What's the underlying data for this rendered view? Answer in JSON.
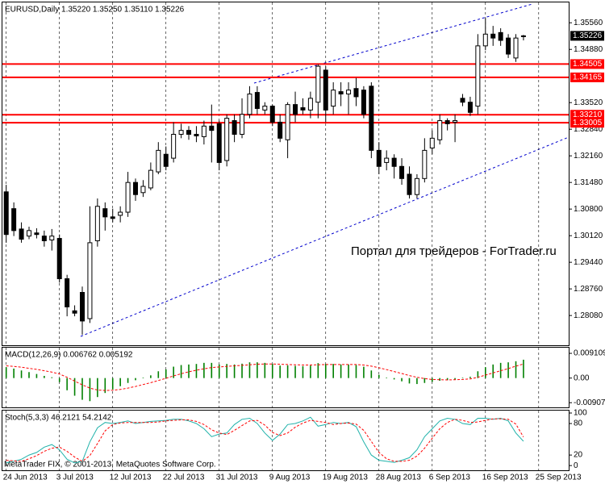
{
  "chart_data": [
    {
      "type": "candlestick",
      "title": "EURUSD,Daily  1.35220 1.35250 1.35110 1.35226",
      "up_color": "#ffffff",
      "down_color": "#000000",
      "level_color": "#ff0000",
      "ylim": [
        1.2732,
        1.3608
      ],
      "yticks": [
        {
          "value": 1.3556,
          "label": "1.35560"
        },
        {
          "value": 1.3488,
          "label": "1.34880"
        },
        {
          "value": 1.3352,
          "label": "1.33520"
        },
        {
          "value": 1.3284,
          "label": "1.32840"
        },
        {
          "value": 1.3216,
          "label": "1.32160"
        },
        {
          "value": 1.3148,
          "label": "1.31480"
        },
        {
          "value": 1.308,
          "label": "1.30800"
        },
        {
          "value": 1.3012,
          "label": "1.30120"
        },
        {
          "value": 1.2944,
          "label": "1.29440"
        },
        {
          "value": 1.2876,
          "label": "1.28760"
        },
        {
          "value": 1.2808,
          "label": "1.28080"
        }
      ],
      "levels": [
        1.34505,
        1.34165,
        {
          "value": 1.3321,
          "label": "1.33210"
        },
        1.33005
      ],
      "xticks": [
        {
          "value": 0,
          "label": "24 Jun 2013"
        },
        {
          "value": 7,
          "label": "3 Jul 2013"
        },
        {
          "value": 14,
          "label": "12 Jul 2013"
        },
        {
          "value": 21,
          "label": "22 Jul 2013"
        },
        {
          "value": 28,
          "label": "31 Jul 2013"
        },
        {
          "value": 35,
          "label": "9 Aug 2013"
        },
        {
          "value": 42,
          "label": "19 Aug 2013"
        },
        {
          "value": 49,
          "label": "28 Aug 2013"
        },
        {
          "value": 56,
          "label": "6 Sep 2013"
        },
        {
          "value": 63,
          "label": "16 Sep 2013"
        },
        {
          "value": 70,
          "label": "25 Sep 2013"
        }
      ],
      "open": [
        1.3124,
        1.3081,
        1.3029,
        1.3011,
        1.3019,
        1.3011,
        1.3001,
        1.3005,
        1.2902,
        1.282,
        1.2867,
        1.28,
        1.2999,
        1.3081,
        1.306,
        1.3064,
        1.3072,
        1.3148,
        1.3122,
        1.3134,
        1.3175,
        1.322,
        1.321,
        1.3271,
        1.3281,
        1.3271,
        1.3265,
        1.3292,
        1.3298,
        1.3204,
        1.3306,
        1.3271,
        1.3322,
        1.3378,
        1.3333,
        1.3343,
        1.3302,
        1.3257,
        1.3347,
        1.3339,
        1.3333,
        1.3353,
        1.3435,
        1.3343,
        1.338,
        1.3374,
        1.3388,
        1.3384,
        1.3394,
        1.323,
        1.3199,
        1.321,
        1.3189,
        1.3169,
        1.3117,
        1.3158,
        1.3236,
        1.3257,
        1.3306,
        1.3302,
        1.3363,
        1.3353,
        1.3343,
        1.3497,
        1.3527,
        1.3531,
        1.3517,
        1.3466,
        1.3522
      ],
      "high": [
        1.3142,
        1.3097,
        1.3046,
        1.3035,
        1.3031,
        1.3025,
        1.3029,
        1.3015,
        1.2912,
        1.2834,
        1.2882,
        1.3087,
        1.3107,
        1.3097,
        1.3081,
        1.3087,
        1.3175,
        1.3158,
        1.3154,
        1.3199,
        1.3251,
        1.324,
        1.3302,
        1.3298,
        1.3292,
        1.3292,
        1.3306,
        1.3347,
        1.3306,
        1.3322,
        1.3322,
        1.3363,
        1.3394,
        1.3394,
        1.3353,
        1.3347,
        1.3322,
        1.3353,
        1.338,
        1.3363,
        1.338,
        1.345,
        1.3445,
        1.3404,
        1.3404,
        1.3404,
        1.3415,
        1.3394,
        1.3404,
        1.3251,
        1.323,
        1.322,
        1.321,
        1.3189,
        1.3169,
        1.3261,
        1.3281,
        1.3322,
        1.3312,
        1.3322,
        1.3374,
        1.3367,
        1.3527,
        1.3568,
        1.3548,
        1.3542,
        1.3527,
        1.3527,
        1.3525
      ],
      "low": [
        1.2994,
        1.3011,
        1.2994,
        1.3003,
        1.3005,
        1.2984,
        1.2974,
        1.2892,
        1.2806,
        1.2806,
        1.2759,
        1.2789,
        1.2984,
        1.3025,
        1.3046,
        1.3046,
        1.306,
        1.3101,
        1.3111,
        1.3128,
        1.3169,
        1.3179,
        1.3199,
        1.3261,
        1.3257,
        1.3251,
        1.3245,
        1.3199,
        1.3179,
        1.3189,
        1.3251,
        1.3261,
        1.3312,
        1.3322,
        1.3322,
        1.3292,
        1.3251,
        1.321,
        1.3302,
        1.3322,
        1.3312,
        1.3312,
        1.3302,
        1.3322,
        1.3343,
        1.3322,
        1.3343,
        1.3312,
        1.321,
        1.3169,
        1.3179,
        1.3158,
        1.3142,
        1.3107,
        1.3107,
        1.3148,
        1.322,
        1.3245,
        1.3281,
        1.3251,
        1.3343,
        1.3318,
        1.3322,
        1.3486,
        1.3497,
        1.3497,
        1.3466,
        1.3456,
        1.3511
      ],
      "close": [
        1.3015,
        1.3025,
        1.3003,
        1.3025,
        1.3015,
        1.2999,
        1.3011,
        1.2902,
        1.283,
        1.2814,
        1.2794,
        1.2994,
        1.3087,
        1.306,
        1.3056,
        1.3072,
        1.3148,
        1.3117,
        1.3138,
        1.3179,
        1.323,
        1.3189,
        1.3271,
        1.3281,
        1.3271,
        1.3267,
        1.3292,
        1.3281,
        1.3199,
        1.3312,
        1.3271,
        1.3322,
        1.3374,
        1.3337,
        1.3343,
        1.3302,
        1.3261,
        1.3347,
        1.3322,
        1.3333,
        1.3363,
        1.3445,
        1.3333,
        1.3384,
        1.3374,
        1.3384,
        1.3367,
        1.3322,
        1.323,
        1.3189,
        1.321,
        1.3189,
        1.3158,
        1.3117,
        1.3158,
        1.323,
        1.3261,
        1.3306,
        1.3298,
        1.3306,
        1.3353,
        1.3327,
        1.3497,
        1.3527,
        1.3517,
        1.3511,
        1.3476,
        1.3517,
        1.35226
      ]
    },
    {
      "type": "macd",
      "title": "MACD(12,26,9) 0.006762 0.005192",
      "ylim": [
        -0.0108,
        0.0112
      ],
      "yticks": [
        0.009109,
        {
          "value": 0,
          "label": "0.00"
        },
        -0.009076
      ],
      "histogram_color": "#008000",
      "signal_color": "#ff0000",
      "histogram": [
        0.004,
        0.0035,
        0.0028,
        0.0022,
        0.0015,
        0.0008,
        0.0003,
        -0.0015,
        -0.0045,
        -0.0065,
        -0.008,
        -0.0085,
        -0.007,
        -0.0055,
        -0.0042,
        -0.003,
        -0.0018,
        -0.0008,
        0.0002,
        0.001,
        0.0025,
        0.0032,
        0.0042,
        0.0048,
        0.005,
        0.0052,
        0.0056,
        0.0056,
        0.005,
        0.0052,
        0.005,
        0.0053,
        0.0058,
        0.0058,
        0.0056,
        0.0052,
        0.0046,
        0.0047,
        0.0045,
        0.0044,
        0.0046,
        0.0055,
        0.0052,
        0.0052,
        0.005,
        0.005,
        0.0048,
        0.0042,
        0.0028,
        0.0012,
        0.0002,
        -0.0005,
        -0.0012,
        -0.002,
        -0.0022,
        -0.0018,
        -0.0014,
        -0.001,
        -0.0008,
        -0.0005,
        0.0002,
        0.0005,
        0.0025,
        0.004,
        0.005,
        0.0056,
        0.0058,
        0.0062,
        0.006762
      ],
      "signal": [
        0.0045,
        0.0043,
        0.004,
        0.0036,
        0.0032,
        0.0027,
        0.0022,
        0.0015,
        0.0003,
        -0.0011,
        -0.0025,
        -0.0037,
        -0.0044,
        -0.0046,
        -0.0045,
        -0.0042,
        -0.0037,
        -0.0031,
        -0.0024,
        -0.0017,
        -0.0009,
        -0.0001,
        0.0008,
        0.0016,
        0.0023,
        0.0029,
        0.0034,
        0.0039,
        0.0041,
        0.0043,
        0.0045,
        0.0047,
        0.0049,
        0.0051,
        0.0052,
        0.0052,
        0.0051,
        0.005,
        0.0049,
        0.0048,
        0.0048,
        0.0049,
        0.005,
        0.005,
        0.005,
        0.005,
        0.005,
        0.0048,
        0.0044,
        0.0038,
        0.0031,
        0.0024,
        0.0017,
        0.0009,
        0.0003,
        -0.0002,
        -0.0005,
        -0.0006,
        -0.0007,
        -0.0006,
        -0.0005,
        -0.0003,
        0.0003,
        0.0011,
        0.0019,
        0.0027,
        0.0035,
        0.0044,
        0.005192
      ]
    },
    {
      "type": "stochastic",
      "title": "Stoch(5,3,3) 46.2121 54.2142",
      "ylim": [
        -9,
        104.6
      ],
      "yticks": [
        100,
        80,
        20,
        0
      ],
      "main_color": "#20b2aa",
      "signal_color": "#ff0000",
      "main": [
        5,
        8,
        12,
        20,
        25,
        35,
        40,
        30,
        12,
        5,
        8,
        45,
        72,
        82,
        80,
        82,
        85,
        80,
        82,
        84,
        85,
        86,
        88,
        88,
        85,
        80,
        70,
        55,
        60,
        62,
        78,
        88,
        90,
        80,
        62,
        48,
        60,
        78,
        80,
        85,
        92,
        75,
        78,
        82,
        80,
        82,
        74,
        45,
        20,
        10,
        8,
        6,
        10,
        15,
        30,
        55,
        70,
        85,
        90,
        88,
        80,
        78,
        90,
        90,
        88,
        90,
        85,
        62,
        46.2121
      ],
      "signal": [
        10,
        9,
        8,
        13,
        19,
        27,
        33,
        35,
        27,
        16,
        8,
        19,
        42,
        66,
        78,
        81,
        82,
        82,
        82,
        82,
        83,
        85,
        86,
        87,
        87,
        84,
        78,
        68,
        62,
        59,
        67,
        76,
        85,
        86,
        77,
        63,
        57,
        62,
        73,
        81,
        86,
        84,
        82,
        78,
        80,
        81,
        79,
        67,
        46,
        25,
        13,
        8,
        8,
        10,
        18,
        33,
        52,
        70,
        82,
        88,
        86,
        82,
        83,
        86,
        89,
        89,
        88,
        79,
        54.2142
      ]
    }
  ],
  "watermark": "Портал для трейдеров - ForTrader.ru",
  "copyright": "MetaTrader FIX, © 2001-2013, MetaQuotes Software Corp."
}
